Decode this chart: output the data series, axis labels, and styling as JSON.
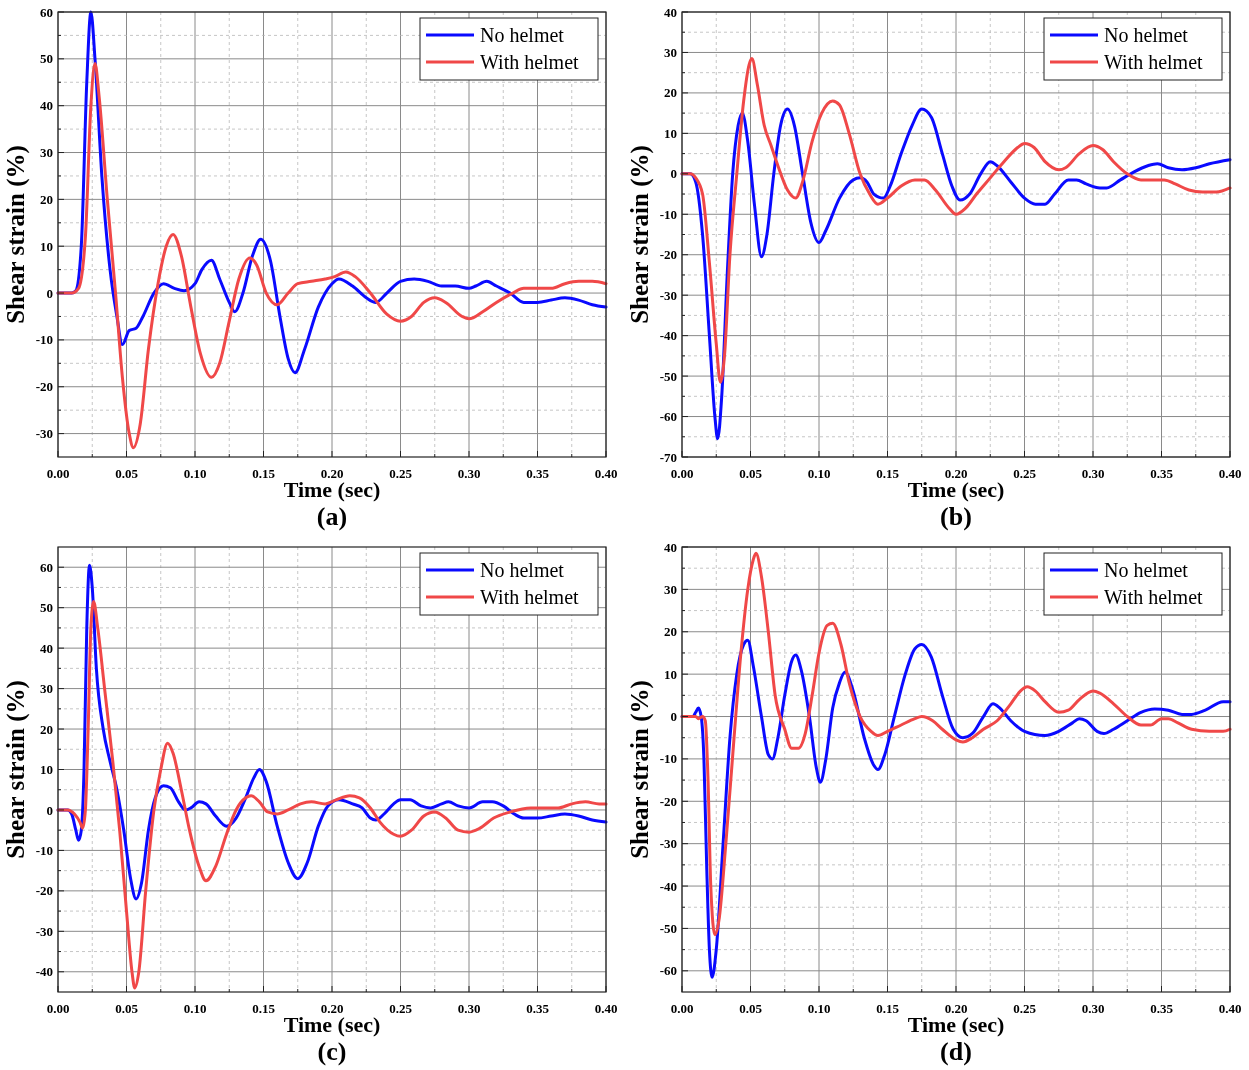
{
  "chart_data": [
    {
      "type": "line",
      "title": "(a)",
      "xlabel": "Time (sec)",
      "ylabel": "Shear strain (%)",
      "xlim": [
        0,
        0.4
      ],
      "ylim": [
        -35,
        60
      ],
      "grid": true,
      "legend": "top right",
      "line_style": "solid",
      "marker": "none",
      "xticks": [
        {
          "value": 0,
          "label": "0.00"
        },
        {
          "value": 0.025,
          "label": null
        },
        {
          "value": 0.05,
          "label": "0.05"
        },
        {
          "value": 0.075,
          "label": null
        },
        {
          "value": 0.1,
          "label": "0.10"
        },
        {
          "value": 0.125,
          "label": null
        },
        {
          "value": 0.15,
          "label": "0.15"
        },
        {
          "value": 0.175,
          "label": null
        },
        {
          "value": 0.2,
          "label": "0.20"
        },
        {
          "value": 0.225,
          "label": null
        },
        {
          "value": 0.25,
          "label": "0.25"
        },
        {
          "value": 0.275,
          "label": null
        },
        {
          "value": 0.3,
          "label": "0.30"
        },
        {
          "value": 0.325,
          "label": null
        },
        {
          "value": 0.35,
          "label": "0.35"
        },
        {
          "value": 0.375,
          "label": null
        },
        {
          "value": 0.4,
          "label": "0.40"
        }
      ],
      "yticks": [
        -30,
        {
          "value": -25,
          "label": null
        },
        -20,
        {
          "value": -15,
          "label": null
        },
        -10,
        {
          "value": -5,
          "label": null
        },
        0,
        {
          "value": 5,
          "label": null
        },
        10,
        {
          "value": 15,
          "label": null
        },
        20,
        {
          "value": 25,
          "label": null
        },
        30,
        {
          "value": 35,
          "label": null
        },
        40,
        {
          "value": 45,
          "label": null
        },
        50,
        {
          "value": 55,
          "label": null
        },
        60
      ],
      "series": [
        {
          "name": "No helmet",
          "color": "#0a0aff",
          "x": [
            0,
            0.01,
            0.013,
            0.017,
            0.021,
            0.024,
            0.027,
            0.032,
            0.038,
            0.043,
            0.047,
            0.052,
            0.057,
            0.062,
            0.07,
            0.077,
            0.085,
            0.092,
            0.1,
            0.105,
            0.112,
            0.118,
            0.125,
            0.129,
            0.135,
            0.142,
            0.148,
            0.155,
            0.162,
            0.168,
            0.173,
            0.18,
            0.19,
            0.2,
            0.205,
            0.215,
            0.225,
            0.232,
            0.24,
            0.25,
            0.26,
            0.27,
            0.28,
            0.29,
            0.3,
            0.305,
            0.313,
            0.32,
            0.33,
            0.34,
            0.35,
            0.36,
            0.37,
            0.38,
            0.39,
            0.4
          ],
          "values": [
            0,
            0,
            0.5,
            10,
            45,
            60,
            50,
            25,
            5,
            -5,
            -11,
            -8,
            -7.5,
            -5,
            0,
            2,
            1,
            0.5,
            2,
            5,
            7,
            3,
            -2,
            -4,
            0,
            8,
            11.5,
            7,
            -5,
            -14,
            -17,
            -12,
            -3,
            2,
            3,
            1.5,
            -1,
            -2,
            0,
            2.5,
            3,
            2.5,
            1.5,
            1.5,
            1,
            1.5,
            2.5,
            1.5,
            0,
            -2,
            -2,
            -1.5,
            -1,
            -1.5,
            -2.5,
            -3
          ]
        },
        {
          "name": "With helmet",
          "color": "#f04848",
          "x": [
            0,
            0.01,
            0.015,
            0.02,
            0.024,
            0.027,
            0.03,
            0.036,
            0.042,
            0.047,
            0.052,
            0.055,
            0.06,
            0.066,
            0.073,
            0.079,
            0.084,
            0.09,
            0.097,
            0.104,
            0.112,
            0.118,
            0.125,
            0.132,
            0.14,
            0.145,
            0.152,
            0.16,
            0.168,
            0.175,
            0.185,
            0.195,
            0.202,
            0.21,
            0.217,
            0.228,
            0.24,
            0.25,
            0.258,
            0.267,
            0.275,
            0.283,
            0.295,
            0.3,
            0.31,
            0.32,
            0.332,
            0.34,
            0.35,
            0.36,
            0.37,
            0.38,
            0.39,
            0.4
          ],
          "values": [
            0,
            0,
            1,
            12,
            40,
            49,
            42,
            20,
            0,
            -18,
            -30,
            -33,
            -28,
            -12,
            2,
            10,
            12.5,
            8,
            -3,
            -13,
            -18,
            -15,
            -6,
            3,
            7.5,
            6,
            0,
            -2.5,
            0,
            2,
            2.5,
            3,
            3.5,
            4.5,
            3.5,
            0,
            -4.5,
            -6,
            -5,
            -2,
            -1,
            -2,
            -5,
            -5.5,
            -4,
            -2,
            0,
            1,
            1,
            1,
            2,
            2.5,
            2.5,
            2
          ]
        }
      ]
    },
    {
      "type": "line",
      "title": "(b)",
      "xlabel": "Time (sec)",
      "ylabel": "Shear strain (%)",
      "xlim": [
        0,
        0.4
      ],
      "ylim": [
        -70,
        40
      ],
      "grid": true,
      "legend": "top right",
      "line_style": "solid",
      "marker": "none",
      "xticks": [
        {
          "value": 0,
          "label": "0.00"
        },
        {
          "value": 0.025,
          "label": null
        },
        {
          "value": 0.05,
          "label": "0.05"
        },
        {
          "value": 0.075,
          "label": null
        },
        {
          "value": 0.1,
          "label": "0.10"
        },
        {
          "value": 0.125,
          "label": null
        },
        {
          "value": 0.15,
          "label": "0.15"
        },
        {
          "value": 0.175,
          "label": null
        },
        {
          "value": 0.2,
          "label": "0.20"
        },
        {
          "value": 0.225,
          "label": null
        },
        {
          "value": 0.25,
          "label": "0.25"
        },
        {
          "value": 0.275,
          "label": null
        },
        {
          "value": 0.3,
          "label": "0.30"
        },
        {
          "value": 0.325,
          "label": null
        },
        {
          "value": 0.35,
          "label": "0.35"
        },
        {
          "value": 0.375,
          "label": null
        },
        {
          "value": 0.4,
          "label": "0.40"
        }
      ],
      "yticks": [
        -70,
        {
          "value": -65,
          "label": null
        },
        -60,
        {
          "value": -55,
          "label": null
        },
        -50,
        {
          "value": -45,
          "label": null
        },
        -40,
        {
          "value": -35,
          "label": null
        },
        -30,
        {
          "value": -25,
          "label": null
        },
        -20,
        {
          "value": -15,
          "label": null
        },
        -10,
        {
          "value": -5,
          "label": null
        },
        0,
        {
          "value": 5,
          "label": null
        },
        10,
        {
          "value": 15,
          "label": null
        },
        20,
        {
          "value": 25,
          "label": null
        },
        30,
        {
          "value": 35,
          "label": null
        },
        40
      ],
      "series": [
        {
          "name": "No helmet",
          "color": "#0a0aff",
          "x": [
            0,
            0.006,
            0.01,
            0.015,
            0.02,
            0.024,
            0.026,
            0.029,
            0.033,
            0.037,
            0.041,
            0.044,
            0.048,
            0.053,
            0.058,
            0.062,
            0.067,
            0.072,
            0.077,
            0.082,
            0.088,
            0.094,
            0.1,
            0.105,
            0.115,
            0.125,
            0.13,
            0.135,
            0.14,
            0.147,
            0.152,
            0.16,
            0.168,
            0.175,
            0.182,
            0.19,
            0.197,
            0.203,
            0.21,
            0.218,
            0.225,
            0.23,
            0.24,
            0.25,
            0.258,
            0.265,
            0.272,
            0.282,
            0.288,
            0.295,
            0.305,
            0.31,
            0.32,
            0.33,
            0.34,
            0.347,
            0.355,
            0.365,
            0.375,
            0.385,
            0.4
          ],
          "values": [
            0,
            0,
            -2,
            -15,
            -40,
            -60,
            -65.5,
            -55,
            -25,
            0,
            12,
            15,
            8,
            -8,
            -20.5,
            -15,
            0,
            12,
            16,
            12,
            0,
            -12,
            -17,
            -14,
            -6,
            -1.5,
            -1,
            -2,
            -5,
            -6,
            -3,
            5,
            12,
            16,
            14,
            5,
            -3,
            -6.5,
            -5,
            0,
            3,
            2,
            -2,
            -6,
            -7.5,
            -7.5,
            -5,
            -1.5,
            -1.5,
            -2.5,
            -3.5,
            -3.5,
            -1.5,
            0.5,
            2,
            2.5,
            1.5,
            1,
            1.5,
            2.5,
            3.5
          ]
        },
        {
          "name": "With helmet",
          "color": "#f04848",
          "x": [
            0,
            0.006,
            0.01,
            0.015,
            0.02,
            0.025,
            0.028,
            0.031,
            0.035,
            0.04,
            0.045,
            0.049,
            0.051,
            0.055,
            0.06,
            0.065,
            0.07,
            0.077,
            0.083,
            0.088,
            0.095,
            0.102,
            0.11,
            0.115,
            0.122,
            0.13,
            0.137,
            0.143,
            0.15,
            0.16,
            0.17,
            0.177,
            0.185,
            0.195,
            0.2,
            0.207,
            0.215,
            0.225,
            0.235,
            0.245,
            0.25,
            0.257,
            0.265,
            0.275,
            0.28,
            0.29,
            0.3,
            0.307,
            0.315,
            0.325,
            0.335,
            0.345,
            0.352,
            0.36,
            0.37,
            0.38,
            0.39,
            0.4
          ],
          "values": [
            0,
            0,
            -1,
            -5,
            -22,
            -42,
            -51.5,
            -45,
            -20,
            0,
            18,
            27,
            28.5,
            22,
            12,
            7,
            2,
            -4,
            -6,
            -2,
            8,
            15,
            18,
            17,
            10,
            0,
            -5,
            -7.5,
            -6,
            -3,
            -1.5,
            -1.5,
            -4,
            -8.5,
            -10,
            -8.5,
            -5,
            -1,
            3,
            6.5,
            7.5,
            6.5,
            3,
            1,
            1.5,
            5,
            7,
            6,
            3,
            0,
            -1.5,
            -1.5,
            -1.5,
            -2.5,
            -4,
            -4.5,
            -4.5,
            -3.5
          ]
        }
      ]
    },
    {
      "type": "line",
      "title": "(c)",
      "xlabel": "Time (sec)",
      "ylabel": "Shear strain (%)",
      "xlim": [
        0,
        0.4
      ],
      "ylim": [
        -45,
        65
      ],
      "grid": true,
      "legend": "top right",
      "line_style": "solid",
      "marker": "none",
      "xticks": [
        {
          "value": 0,
          "label": "0.00"
        },
        {
          "value": 0.025,
          "label": null
        },
        {
          "value": 0.05,
          "label": "0.05"
        },
        {
          "value": 0.075,
          "label": null
        },
        {
          "value": 0.1,
          "label": "0.10"
        },
        {
          "value": 0.125,
          "label": null
        },
        {
          "value": 0.15,
          "label": "0.15"
        },
        {
          "value": 0.175,
          "label": null
        },
        {
          "value": 0.2,
          "label": "0.20"
        },
        {
          "value": 0.225,
          "label": null
        },
        {
          "value": 0.25,
          "label": "0.25"
        },
        {
          "value": 0.275,
          "label": null
        },
        {
          "value": 0.3,
          "label": "0.30"
        },
        {
          "value": 0.325,
          "label": null
        },
        {
          "value": 0.35,
          "label": "0.35"
        },
        {
          "value": 0.375,
          "label": null
        },
        {
          "value": 0.4,
          "label": "0.40"
        }
      ],
      "yticks": [
        -40,
        {
          "value": -35,
          "label": null
        },
        -30,
        {
          "value": -25,
          "label": null
        },
        -20,
        {
          "value": -15,
          "label": null
        },
        -10,
        {
          "value": -5,
          "label": null
        },
        0,
        {
          "value": 5,
          "label": null
        },
        10,
        {
          "value": 15,
          "label": null
        },
        20,
        {
          "value": 25,
          "label": null
        },
        30,
        {
          "value": 35,
          "label": null
        },
        40,
        {
          "value": 45,
          "label": null
        },
        50,
        {
          "value": 55,
          "label": null
        },
        60
      ],
      "series": [
        {
          "name": "No helmet",
          "color": "#0a0aff",
          "x": [
            0,
            0.007,
            0.01,
            0.013,
            0.015,
            0.017,
            0.019,
            0.021,
            0.023,
            0.025,
            0.028,
            0.033,
            0.038,
            0.043,
            0.048,
            0.053,
            0.057,
            0.061,
            0.066,
            0.071,
            0.077,
            0.082,
            0.088,
            0.093,
            0.097,
            0.103,
            0.108,
            0.115,
            0.123,
            0.13,
            0.137,
            0.143,
            0.147,
            0.152,
            0.16,
            0.168,
            0.175,
            0.182,
            0.19,
            0.197,
            0.205,
            0.215,
            0.222,
            0.228,
            0.232,
            0.238,
            0.245,
            0.25,
            0.257,
            0.265,
            0.272,
            0.28,
            0.285,
            0.292,
            0.3,
            0.31,
            0.317,
            0.325,
            0.333,
            0.34,
            0.35,
            0.36,
            0.37,
            0.38,
            0.39,
            0.4
          ],
          "values": [
            0,
            0,
            -1,
            -5,
            -7.5,
            -5,
            10,
            45,
            60.5,
            55,
            35,
            20,
            12,
            5,
            -5,
            -17,
            -22,
            -18,
            -5,
            3,
            6,
            5.5,
            2,
            0,
            0.5,
            2,
            1.5,
            -1.5,
            -4,
            -2,
            3,
            8,
            10,
            7,
            -4,
            -13,
            -17,
            -13,
            -4,
            1,
            2.5,
            1.5,
            0.5,
            -2,
            -2.5,
            -1,
            1.5,
            2.5,
            2.5,
            1,
            0.5,
            1.5,
            2,
            1,
            0.5,
            2,
            2,
            1,
            -1,
            -2,
            -2,
            -1.5,
            -1,
            -1.5,
            -2.5,
            -3
          ]
        },
        {
          "name": "With helmet",
          "color": "#f04848",
          "x": [
            0,
            0.007,
            0.012,
            0.016,
            0.018,
            0.02,
            0.022,
            0.024,
            0.026,
            0.029,
            0.034,
            0.04,
            0.045,
            0.05,
            0.054,
            0.056,
            0.059,
            0.064,
            0.07,
            0.075,
            0.08,
            0.084,
            0.09,
            0.096,
            0.103,
            0.108,
            0.115,
            0.123,
            0.13,
            0.137,
            0.141,
            0.147,
            0.153,
            0.16,
            0.168,
            0.177,
            0.185,
            0.195,
            0.203,
            0.213,
            0.22,
            0.228,
            0.235,
            0.245,
            0.25,
            0.258,
            0.267,
            0.275,
            0.283,
            0.292,
            0.3,
            0.308,
            0.318,
            0.33,
            0.345,
            0.355,
            0.365,
            0.375,
            0.385,
            0.395,
            0.4
          ],
          "values": [
            0,
            0,
            -1,
            -3,
            -4.5,
            0,
            20,
            45,
            51.5,
            45,
            30,
            12,
            -5,
            -25,
            -40,
            -44,
            -40,
            -20,
            0,
            10,
            16.5,
            14,
            5,
            -5,
            -14,
            -17.5,
            -14,
            -6,
            0,
            3,
            3.5,
            2,
            -0.5,
            -1,
            0,
            1.5,
            2,
            1.5,
            2.5,
            3.5,
            3,
            0.5,
            -3,
            -6,
            -6.5,
            -5,
            -1.5,
            -0.5,
            -2,
            -5,
            -5.5,
            -4.5,
            -2,
            -0.5,
            0.5,
            0.5,
            0.5,
            1.5,
            2,
            1.5,
            1.5
          ]
        }
      ]
    },
    {
      "type": "line",
      "title": "(d)",
      "xlabel": "Time (sec)",
      "ylabel": "Shear strain (%)",
      "xlim": [
        0,
        0.4
      ],
      "ylim": [
        -65,
        40
      ],
      "grid": true,
      "legend": "top right",
      "line_style": "solid",
      "marker": "none",
      "xticks": [
        {
          "value": 0,
          "label": "0.00"
        },
        {
          "value": 0.025,
          "label": null
        },
        {
          "value": 0.05,
          "label": "0.05"
        },
        {
          "value": 0.075,
          "label": null
        },
        {
          "value": 0.1,
          "label": "0.10"
        },
        {
          "value": 0.125,
          "label": null
        },
        {
          "value": 0.15,
          "label": "0.15"
        },
        {
          "value": 0.175,
          "label": null
        },
        {
          "value": 0.2,
          "label": "0.20"
        },
        {
          "value": 0.225,
          "label": null
        },
        {
          "value": 0.25,
          "label": "0.25"
        },
        {
          "value": 0.275,
          "label": null
        },
        {
          "value": 0.3,
          "label": "0.30"
        },
        {
          "value": 0.325,
          "label": null
        },
        {
          "value": 0.35,
          "label": "0.35"
        },
        {
          "value": 0.375,
          "label": null
        },
        {
          "value": 0.4,
          "label": "0.40"
        }
      ],
      "yticks": [
        -60,
        {
          "value": -55,
          "label": null
        },
        -50,
        {
          "value": -45,
          "label": null
        },
        -40,
        {
          "value": -35,
          "label": null
        },
        -30,
        {
          "value": -25,
          "label": null
        },
        -20,
        {
          "value": -15,
          "label": null
        },
        -10,
        {
          "value": -5,
          "label": null
        },
        0,
        {
          "value": 5,
          "label": null
        },
        10,
        {
          "value": 15,
          "label": null
        },
        20,
        {
          "value": 25,
          "label": null
        },
        30,
        {
          "value": 35,
          "label": null
        },
        40
      ],
      "series": [
        {
          "name": "No helmet",
          "color": "#0a0aff",
          "x": [
            0,
            0.008,
            0.01,
            0.012,
            0.014,
            0.016,
            0.018,
            0.02,
            0.022,
            0.025,
            0.03,
            0.035,
            0.04,
            0.045,
            0.048,
            0.052,
            0.058,
            0.063,
            0.066,
            0.07,
            0.075,
            0.08,
            0.083,
            0.087,
            0.093,
            0.098,
            0.101,
            0.105,
            0.11,
            0.115,
            0.119,
            0.125,
            0.133,
            0.14,
            0.143,
            0.148,
            0.155,
            0.163,
            0.17,
            0.175,
            0.182,
            0.19,
            0.198,
            0.205,
            0.212,
            0.22,
            0.227,
            0.232,
            0.24,
            0.25,
            0.265,
            0.275,
            0.285,
            0.29,
            0.295,
            0.303,
            0.308,
            0.315,
            0.325,
            0.335,
            0.345,
            0.355,
            0.365,
            0.372,
            0.382,
            0.395,
            0.4
          ],
          "values": [
            0,
            0,
            1,
            2,
            0,
            -10,
            -35,
            -55,
            -61.5,
            -55,
            -30,
            -5,
            10,
            17,
            18,
            12,
            0,
            -9,
            -10,
            -5,
            5,
            13,
            14.5,
            11,
            0,
            -12,
            -15.5,
            -10,
            2,
            8,
            10.5,
            6,
            -5,
            -11.5,
            -12.5,
            -9,
            0,
            10,
            16,
            17,
            14,
            5,
            -3,
            -5,
            -4,
            0,
            3,
            2,
            -1,
            -3.5,
            -4.5,
            -3.5,
            -1.5,
            -0.5,
            -1,
            -3.5,
            -4,
            -3,
            -1,
            1,
            1.8,
            1.5,
            0.5,
            0.5,
            1.5,
            3.5,
            3.5
          ]
        },
        {
          "name": "With helmet",
          "color": "#f04848",
          "x": [
            0,
            0.01,
            0.012,
            0.015,
            0.017,
            0.019,
            0.021,
            0.024,
            0.027,
            0.032,
            0.038,
            0.043,
            0.048,
            0.052,
            0.054,
            0.058,
            0.063,
            0.068,
            0.075,
            0.08,
            0.085,
            0.09,
            0.095,
            0.1,
            0.106,
            0.11,
            0.116,
            0.122,
            0.13,
            0.138,
            0.143,
            0.15,
            0.16,
            0.17,
            0.175,
            0.183,
            0.19,
            0.2,
            0.205,
            0.212,
            0.22,
            0.23,
            0.24,
            0.247,
            0.252,
            0.258,
            0.265,
            0.275,
            0.282,
            0.29,
            0.3,
            0.305,
            0.315,
            0.325,
            0.335,
            0.342,
            0.35,
            0.355,
            0.362,
            0.372,
            0.385,
            0.395,
            0.4
          ],
          "values": [
            0,
            0,
            -0.5,
            0,
            -1,
            -15,
            -40,
            -51.5,
            -48,
            -30,
            -5,
            15,
            30,
            37,
            38.5,
            33,
            20,
            5,
            -3,
            -7.5,
            -7.5,
            -4,
            5,
            15,
            21.5,
            22,
            17,
            8,
            0,
            -3.5,
            -4.5,
            -3.5,
            -2,
            -0.5,
            0,
            -1,
            -3,
            -5.5,
            -6,
            -5,
            -3,
            -1,
            3,
            6,
            7,
            6,
            3.5,
            1,
            1.5,
            4,
            6,
            5.5,
            3,
            0,
            -2,
            -2,
            -0.5,
            -0.5,
            -1.5,
            -3,
            -3.5,
            -3.5,
            -3
          ]
        }
      ]
    }
  ]
}
